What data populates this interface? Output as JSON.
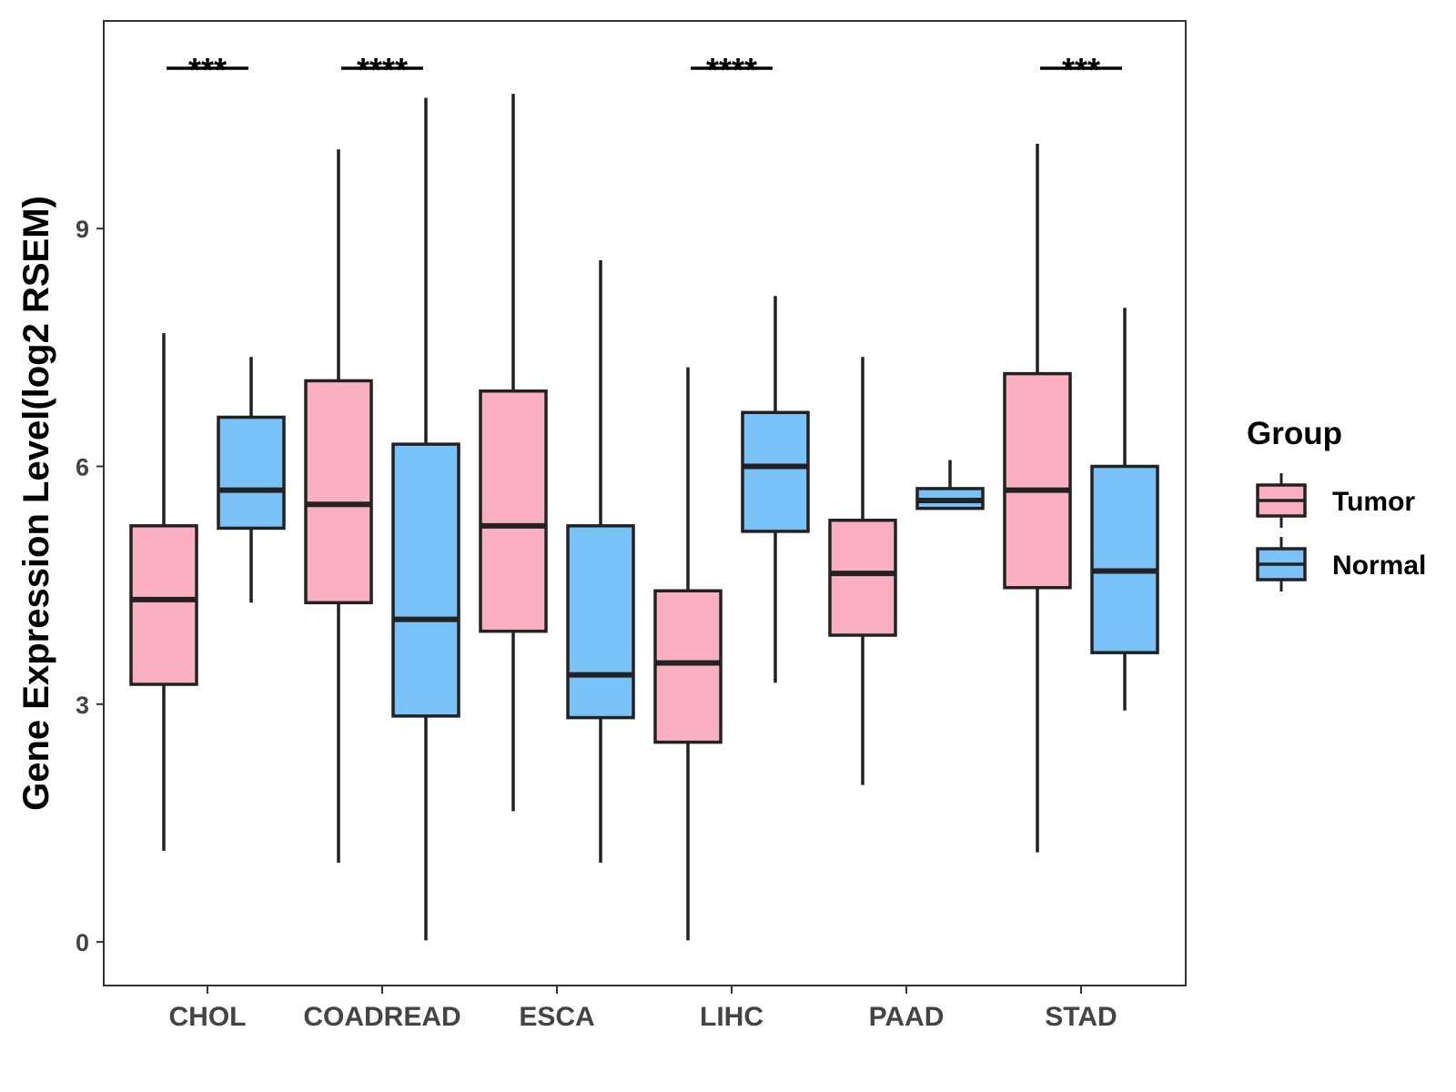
{
  "chart_data": {
    "type": "boxplot",
    "title": "",
    "xlabel": "",
    "ylabel": "Gene Expression Level(log2 RSEM)",
    "ylim": [
      -0.55,
      11.62
    ],
    "yticks": [
      0,
      3,
      6,
      9
    ],
    "categories": [
      "CHOL",
      "COADREAD",
      "ESCA",
      "LIHC",
      "PAAD",
      "STAD"
    ],
    "legend": {
      "title": "Group",
      "position": "right",
      "entries": [
        {
          "name": "Tumor",
          "color": "#FAB0C1"
        },
        {
          "name": "Normal",
          "color": "#78C2F8"
        }
      ]
    },
    "series": [
      {
        "name": "Tumor",
        "color": "#FAB0C1",
        "boxes": [
          {
            "min": 1.15,
            "q1": 3.25,
            "median": 4.32,
            "q3": 5.25,
            "max": 7.68
          },
          {
            "min": 1.0,
            "q1": 4.28,
            "median": 5.52,
            "q3": 7.08,
            "max": 10.0
          },
          {
            "min": 1.65,
            "q1": 3.92,
            "median": 5.25,
            "q3": 6.95,
            "max": 10.7
          },
          {
            "min": 0.02,
            "q1": 2.52,
            "median": 3.52,
            "q3": 4.43,
            "max": 7.25
          },
          {
            "min": 1.98,
            "q1": 3.87,
            "median": 4.65,
            "q3": 5.32,
            "max": 7.38
          },
          {
            "min": 1.13,
            "q1": 4.47,
            "median": 5.7,
            "q3": 7.17,
            "max": 10.07
          }
        ]
      },
      {
        "name": "Normal",
        "color": "#78C2F8",
        "boxes": [
          {
            "min": 4.28,
            "q1": 5.22,
            "median": 5.7,
            "q3": 6.62,
            "max": 7.38
          },
          {
            "min": 0.02,
            "q1": 2.85,
            "median": 4.07,
            "q3": 6.28,
            "max": 10.65
          },
          {
            "min": 1.0,
            "q1": 2.83,
            "median": 3.37,
            "q3": 5.25,
            "max": 8.6
          },
          {
            "min": 3.27,
            "q1": 5.18,
            "median": 6.0,
            "q3": 6.68,
            "max": 8.15
          },
          {
            "min": 5.47,
            "q1": 5.47,
            "median": 5.57,
            "q3": 5.72,
            "max": 6.08
          },
          {
            "min": 2.92,
            "q1": 3.65,
            "median": 4.68,
            "q3": 6.0,
            "max": 8.0
          }
        ]
      }
    ],
    "annotations": [
      {
        "category": "CHOL",
        "label": "***"
      },
      {
        "category": "COADREAD",
        "label": "****"
      },
      {
        "category": "LIHC",
        "label": "****"
      },
      {
        "category": "STAD",
        "label": "***"
      }
    ]
  }
}
